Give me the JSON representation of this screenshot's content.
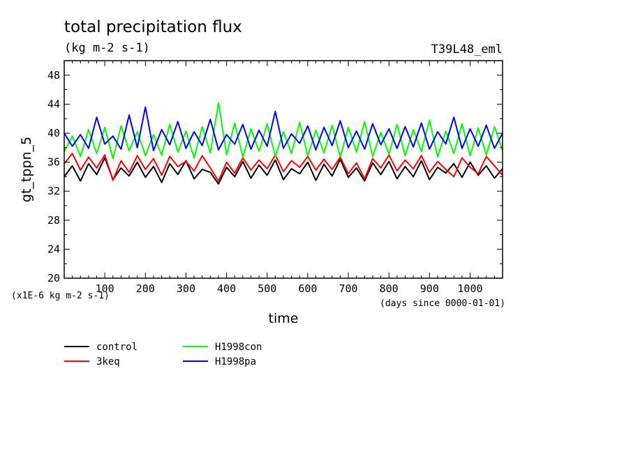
{
  "chart_data": {
    "type": "line",
    "title": "total precipitation flux",
    "subtitle": "(kg m-2 s-1)",
    "run_label": "T39L48_eml",
    "xlabel": "time",
    "x_units_note": "(days since 0000-01-01)",
    "ylabel": "gt_tppn_5",
    "y_scale_note": "(x1E-6 kg m-2 s-1)",
    "xlim": [
      0,
      1080
    ],
    "ylim": [
      20,
      50
    ],
    "x_ticks": [
      100,
      200,
      300,
      400,
      500,
      600,
      700,
      800,
      900,
      1000
    ],
    "y_ticks": [
      20,
      24,
      28,
      32,
      36,
      40,
      44,
      48
    ],
    "grid": false,
    "legend_position": "bottom-left, below plot",
    "series": [
      {
        "name": "control",
        "color": "#000000",
        "x": [
          0,
          20,
          40,
          60,
          80,
          100,
          120,
          140,
          160,
          180,
          200,
          220,
          240,
          260,
          280,
          300,
          320,
          340,
          360,
          380,
          400,
          420,
          440,
          460,
          480,
          500,
          520,
          540,
          560,
          580,
          600,
          620,
          640,
          660,
          680,
          700,
          720,
          740,
          760,
          780,
          800,
          820,
          840,
          860,
          880,
          900,
          920,
          940,
          960,
          980,
          1000,
          1020,
          1040,
          1060,
          1080
        ],
        "values": [
          34.0,
          35.5,
          33.4,
          35.8,
          34.3,
          36.6,
          33.6,
          35.2,
          34.1,
          36.0,
          33.9,
          35.4,
          33.2,
          35.8,
          34.3,
          36.2,
          33.7,
          35.0,
          34.6,
          33.0,
          35.3,
          34.0,
          36.1,
          33.8,
          35.6,
          34.2,
          36.3,
          33.6,
          35.1,
          34.4,
          36.0,
          33.5,
          35.7,
          34.1,
          36.4,
          33.9,
          35.2,
          33.4,
          35.9,
          34.3,
          36.1,
          33.7,
          35.4,
          34.0,
          36.2,
          33.6,
          35.3,
          34.5,
          35.8,
          33.9,
          36.0,
          34.2,
          35.5,
          33.8,
          35.1
        ]
      },
      {
        "name": "3keq",
        "color": "#ff0000",
        "x": [
          0,
          20,
          40,
          60,
          80,
          100,
          120,
          140,
          160,
          180,
          200,
          220,
          240,
          260,
          280,
          300,
          320,
          340,
          360,
          380,
          400,
          420,
          440,
          460,
          480,
          500,
          520,
          540,
          560,
          580,
          600,
          620,
          640,
          660,
          680,
          700,
          720,
          740,
          760,
          780,
          800,
          820,
          840,
          860,
          880,
          900,
          920,
          940,
          960,
          980,
          1000,
          1020,
          1040,
          1060,
          1080
        ],
        "values": [
          35.8,
          37.2,
          34.9,
          36.7,
          35.2,
          37.0,
          33.5,
          36.2,
          34.6,
          36.9,
          35.0,
          36.5,
          34.2,
          36.8,
          35.4,
          36.1,
          34.8,
          36.9,
          35.2,
          33.4,
          36.0,
          34.5,
          36.6,
          34.9,
          36.3,
          35.1,
          37.0,
          34.7,
          36.2,
          35.3,
          36.8,
          34.9,
          36.4,
          35.0,
          36.7,
          34.4,
          35.9,
          33.7,
          36.5,
          35.2,
          37.0,
          34.8,
          36.3,
          35.1,
          36.9,
          34.6,
          36.1,
          35.0,
          34.0,
          36.6,
          35.3,
          34.4,
          36.8,
          35.5,
          34.2
        ]
      },
      {
        "name": "H1998con",
        "color": "#00ff00",
        "x": [
          0,
          20,
          40,
          60,
          80,
          100,
          120,
          140,
          160,
          180,
          200,
          220,
          240,
          260,
          280,
          300,
          320,
          340,
          360,
          380,
          400,
          420,
          440,
          460,
          480,
          500,
          520,
          540,
          560,
          580,
          600,
          620,
          640,
          660,
          680,
          700,
          720,
          740,
          760,
          780,
          800,
          820,
          840,
          860,
          880,
          900,
          920,
          940,
          960,
          980,
          1000,
          1020,
          1040,
          1060,
          1080
        ],
        "values": [
          37.5,
          39.6,
          36.8,
          40.5,
          37.2,
          40.8,
          36.5,
          41.0,
          37.6,
          40.2,
          36.9,
          39.8,
          37.0,
          41.2,
          37.4,
          40.3,
          36.6,
          40.9,
          37.3,
          44.2,
          37.0,
          41.4,
          36.7,
          40.6,
          37.5,
          41.3,
          36.8,
          40.2,
          37.2,
          41.5,
          36.9,
          40.4,
          37.3,
          41.1,
          36.7,
          40.8,
          37.4,
          41.6,
          36.8,
          40.1,
          37.1,
          41.2,
          36.9,
          40.5,
          37.5,
          41.8,
          36.7,
          40.3,
          37.2,
          41.3,
          36.9,
          40.7,
          37.0,
          40.9,
          37.6
        ]
      },
      {
        "name": "H1998pa",
        "color": "#0000ff",
        "x": [
          0,
          20,
          40,
          60,
          80,
          100,
          120,
          140,
          160,
          180,
          200,
          220,
          240,
          260,
          280,
          300,
          320,
          340,
          360,
          380,
          400,
          420,
          440,
          460,
          480,
          500,
          520,
          540,
          560,
          580,
          600,
          620,
          640,
          660,
          680,
          700,
          720,
          740,
          760,
          780,
          800,
          820,
          840,
          860,
          880,
          900,
          920,
          940,
          960,
          980,
          1000,
          1020,
          1040,
          1060,
          1080
        ],
        "values": [
          40.0,
          38.2,
          39.8,
          37.9,
          42.2,
          38.5,
          39.6,
          37.8,
          42.5,
          38.0,
          43.6,
          37.6,
          40.5,
          38.4,
          41.6,
          37.9,
          40.2,
          38.3,
          41.9,
          37.7,
          39.8,
          38.5,
          41.2,
          37.8,
          40.4,
          38.2,
          43.0,
          37.9,
          39.9,
          38.6,
          41.0,
          37.7,
          40.8,
          38.3,
          41.7,
          38.0,
          40.3,
          37.8,
          41.3,
          38.4,
          40.6,
          37.9,
          40.9,
          38.1,
          41.4,
          37.8,
          40.2,
          38.5,
          42.2,
          37.9,
          40.6,
          38.2,
          41.1,
          37.9,
          40.0
        ]
      }
    ]
  }
}
